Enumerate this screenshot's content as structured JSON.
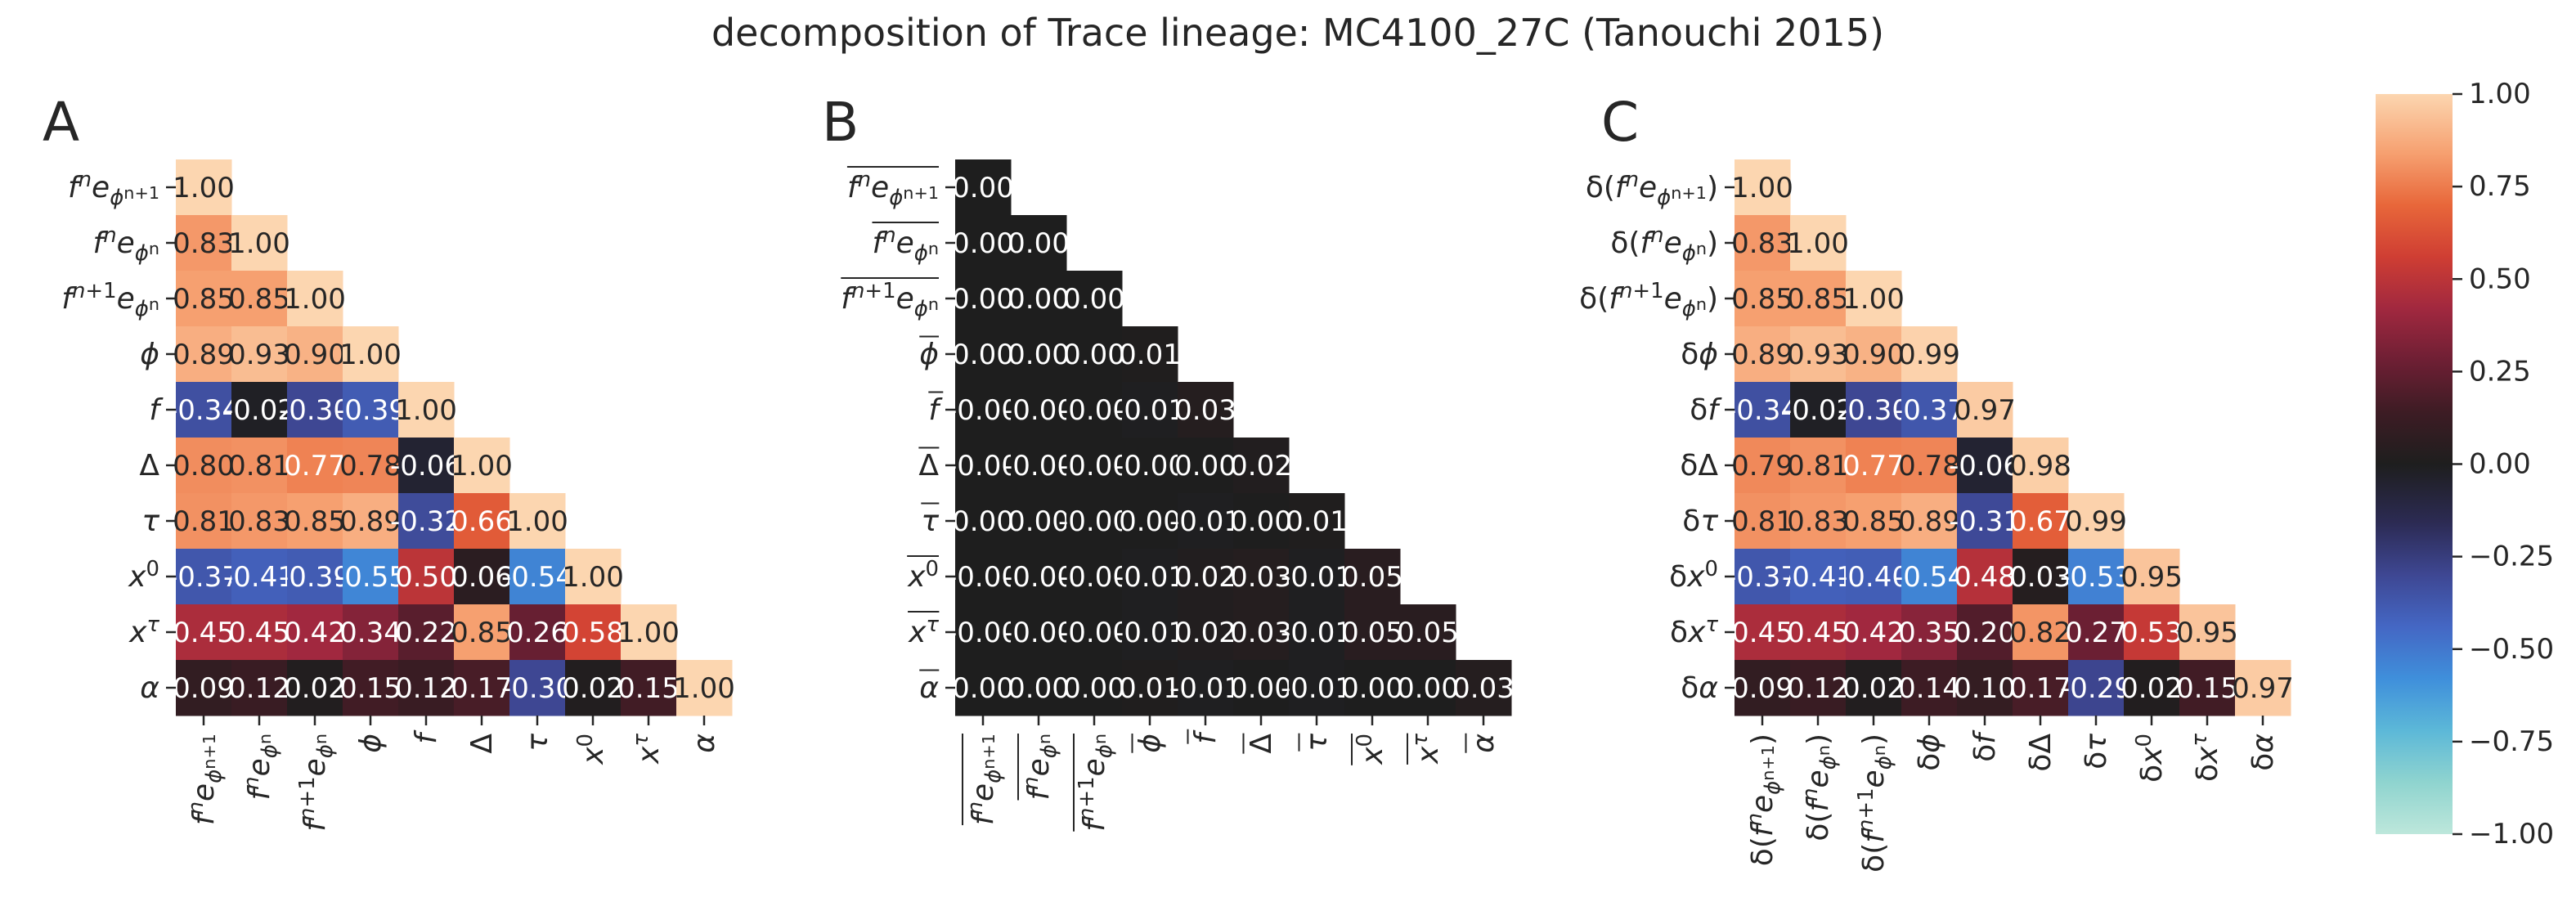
{
  "chart_data": {
    "type": "heatmap",
    "title": "decomposition of Trace lineage: MC4100_27C (Tanouchi 2015)",
    "colormap": "icefire",
    "vmin": -1.0,
    "vmax": 1.0,
    "triangle": "lower",
    "colorbar": {
      "ticks": [
        1.0,
        0.75,
        0.5,
        0.25,
        0.0,
        -0.25,
        -0.5,
        -0.75,
        -1.0
      ],
      "tick_labels": [
        "1.00",
        "0.75",
        "0.50",
        "0.25",
        "0.00",
        "−0.25",
        "−0.50",
        "−0.75",
        "−1.00"
      ]
    },
    "panels": [
      {
        "label": "A",
        "row_labels": [
          "f_n e^{φ_{n+1}}",
          "f_n e^{φ_n}",
          "f_{n+1} e^{φ_n}",
          "φ",
          "f",
          "Δ",
          "τ",
          "x_0",
          "x_τ",
          "α"
        ],
        "col_labels": [
          "f_n e^{φ_{n+1}}",
          "f_n e^{φ_n}",
          "f_{n+1} e^{φ_n}",
          "φ",
          "f",
          "Δ",
          "τ",
          "x_0",
          "x_τ",
          "α"
        ],
        "values": [
          [
            1.0
          ],
          [
            0.83,
            1.0
          ],
          [
            0.85,
            0.85,
            1.0
          ],
          [
            0.89,
            0.93,
            0.9,
            1.0
          ],
          [
            -0.34,
            -0.02,
            -0.3,
            -0.39,
            1.0
          ],
          [
            0.8,
            0.81,
            0.77,
            0.78,
            -0.06,
            1.0
          ],
          [
            0.81,
            0.83,
            0.85,
            0.89,
            -0.32,
            0.66,
            1.0
          ],
          [
            -0.37,
            -0.41,
            -0.39,
            -0.55,
            0.5,
            0.06,
            -0.54,
            1.0
          ],
          [
            0.45,
            0.45,
            0.42,
            0.34,
            0.22,
            0.85,
            0.26,
            0.58,
            1.0
          ],
          [
            0.09,
            0.12,
            0.02,
            0.15,
            0.12,
            0.17,
            -0.3,
            0.02,
            0.15,
            1.0
          ]
        ],
        "cell_labels": [
          [
            "1.00"
          ],
          [
            "0.83",
            "1.00"
          ],
          [
            "0.85",
            "0.85",
            "1.00"
          ],
          [
            "0.89",
            "0.93",
            "0.90",
            "1.00"
          ],
          [
            "-0.34",
            "-0.02",
            "-0.30",
            "-0.39",
            "1.00"
          ],
          [
            "0.80",
            "0.81",
            "0.77",
            "0.78",
            "-0.06",
            "1.00"
          ],
          [
            "0.81",
            "0.83",
            "0.85",
            "0.89",
            "-0.32",
            "0.66",
            "1.00"
          ],
          [
            "-0.37",
            "-0.41",
            "-0.39",
            "-0.55",
            "0.50",
            "0.06",
            "-0.54",
            "1.00"
          ],
          [
            "0.45",
            "0.45",
            "0.42",
            "0.34",
            "0.22",
            "0.85",
            "0.26",
            "0.58",
            "1.00"
          ],
          [
            "0.09",
            "0.12",
            "0.02",
            "0.15",
            "0.12",
            "0.17",
            "-0.30",
            "0.02",
            "0.15",
            "1.00"
          ]
        ]
      },
      {
        "label": "B",
        "row_labels": [
          "overline(f_n e^{φ_{n+1}})",
          "overline(f_n e^{φ_n})",
          "overline(f_{n+1} e^{φ_n})",
          "overline(φ)",
          "overline(f)",
          "overline(Δ)",
          "overline(τ)",
          "overline(x_0)",
          "overline(x_τ)",
          "overline(α)"
        ],
        "col_labels": [
          "overline(f_n e^{φ_{n+1}})",
          "overline(f_n e^{φ_n})",
          "overline(f_{n+1} e^{φ_n})",
          "overline(φ)",
          "overline(f)",
          "overline(Δ)",
          "overline(τ)",
          "overline(x_0)",
          "overline(x_τ)",
          "overline(α)"
        ],
        "values": [
          [
            0.0
          ],
          [
            0.0,
            0.0
          ],
          [
            0.0,
            0.0,
            0.0
          ],
          [
            0.0,
            0.0,
            0.0,
            0.01
          ],
          [
            0.0,
            0.0,
            0.0,
            -0.01,
            0.03
          ],
          [
            0.0,
            0.0,
            0.0,
            0.0,
            0.0,
            0.02
          ],
          [
            0.0,
            0.0,
            0.0,
            0.0,
            -0.01,
            0.0,
            0.01
          ],
          [
            0.0,
            0.0,
            0.0,
            -0.01,
            0.02,
            0.03,
            -0.01,
            0.05
          ],
          [
            0.0,
            0.0,
            0.0,
            -0.01,
            0.02,
            0.03,
            -0.01,
            0.05,
            0.05
          ],
          [
            0.0,
            0.0,
            0.0,
            0.01,
            -0.01,
            0.0,
            -0.01,
            0.0,
            0.0,
            0.03
          ]
        ],
        "cell_labels": [
          [
            "0.00"
          ],
          [
            "0.00",
            "0.00"
          ],
          [
            "0.00",
            "0.00",
            "0.00"
          ],
          [
            "0.00",
            "0.00",
            "0.00",
            "0.01"
          ],
          [
            "-0.00",
            "-0.00",
            "-0.00",
            "-0.01",
            "0.03"
          ],
          [
            "-0.00",
            "-0.00",
            "-0.00",
            "-0.00",
            "0.00",
            "0.02"
          ],
          [
            "0.00",
            "0.00",
            "-0.00",
            "0.00",
            "-0.01",
            "0.00",
            "0.01"
          ],
          [
            "-0.00",
            "-0.00",
            "-0.00",
            "-0.01",
            "0.02",
            "0.03",
            "-0.01",
            "0.05"
          ],
          [
            "-0.00",
            "-0.00",
            "-0.00",
            "-0.01",
            "0.02",
            "0.03",
            "-0.01",
            "0.05",
            "0.05"
          ],
          [
            "0.00",
            "0.00",
            "0.00",
            "0.01",
            "-0.01",
            "0.00",
            "-0.01",
            "0.00",
            "0.00",
            "0.03"
          ]
        ]
      },
      {
        "label": "C",
        "row_labels": [
          "δ(f_n e^{φ_{n+1}})",
          "δ(f_n e^{φ_n})",
          "δ(f_{n+1} e^{φ_n})",
          "δφ",
          "δf",
          "δΔ",
          "δτ",
          "δx_0",
          "δx_τ",
          "δα"
        ],
        "col_labels": [
          "δ(f_n e^{φ_{n+1}})",
          "δ(f_n e^{φ_n})",
          "δ(f_{n+1} e^{φ_n})",
          "δφ",
          "δf",
          "δΔ",
          "δτ",
          "δx_0",
          "δx_τ",
          "δα"
        ],
        "values": [
          [
            1.0
          ],
          [
            0.83,
            1.0
          ],
          [
            0.85,
            0.85,
            1.0
          ],
          [
            0.89,
            0.93,
            0.9,
            0.99
          ],
          [
            -0.34,
            -0.02,
            -0.3,
            -0.37,
            0.97
          ],
          [
            0.79,
            0.81,
            0.77,
            0.78,
            -0.06,
            0.98
          ],
          [
            0.81,
            0.83,
            0.85,
            0.89,
            -0.31,
            0.67,
            0.99
          ],
          [
            -0.37,
            -0.41,
            -0.4,
            -0.54,
            0.48,
            0.03,
            -0.53,
            0.95
          ],
          [
            0.45,
            0.45,
            0.42,
            0.35,
            0.2,
            0.82,
            0.27,
            0.53,
            0.95
          ],
          [
            0.09,
            0.12,
            0.02,
            0.14,
            0.1,
            0.17,
            -0.29,
            0.02,
            0.15,
            0.97
          ]
        ],
        "cell_labels": [
          [
            "1.00"
          ],
          [
            "0.83",
            "1.00"
          ],
          [
            "0.85",
            "0.85",
            "1.00"
          ],
          [
            "0.89",
            "0.93",
            "0.90",
            "0.99"
          ],
          [
            "-0.34",
            "-0.02",
            "-0.30",
            "-0.37",
            "0.97"
          ],
          [
            "0.79",
            "0.81",
            "0.77",
            "0.78",
            "-0.06",
            "0.98"
          ],
          [
            "0.81",
            "0.83",
            "0.85",
            "0.89",
            "-0.31",
            "0.67",
            "0.99"
          ],
          [
            "-0.37",
            "-0.41",
            "-0.40",
            "-0.54",
            "0.48",
            "0.03",
            "-0.53",
            "0.95"
          ],
          [
            "0.45",
            "0.45",
            "0.42",
            "0.35",
            "0.20",
            "0.82",
            "0.27",
            "0.53",
            "0.95"
          ],
          [
            "0.09",
            "0.12",
            "0.02",
            "0.14",
            "0.10",
            "0.17",
            "-0.29",
            "0.02",
            "0.15",
            "0.97"
          ]
        ]
      }
    ]
  }
}
